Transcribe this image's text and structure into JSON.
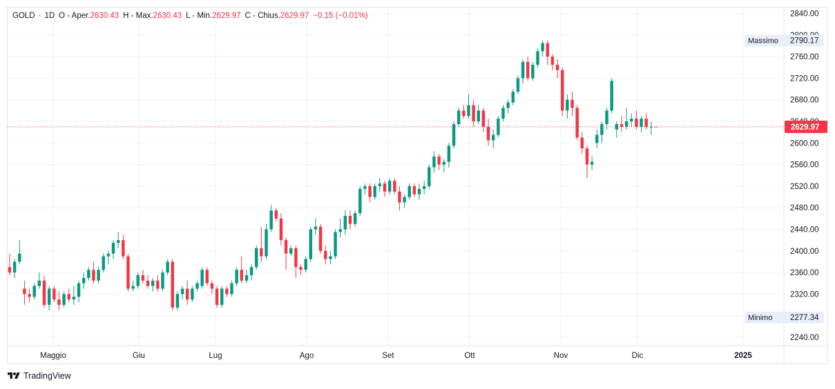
{
  "legend": {
    "symbol": "GOLD",
    "interval": "1D",
    "open_label": "O - Aper.",
    "open": "2630.43",
    "high_label": "H - Max.",
    "high": "2630.43",
    "low_label": "L - Min.",
    "low": "2629.97",
    "close_label": "C - Chius.",
    "close": "2629.97",
    "change": "−0.15 (−0.01%)"
  },
  "brand": {
    "name": "TradingView"
  },
  "colors": {
    "up": "#089981",
    "down": "#f23645",
    "grid": "#f0f3fa",
    "axis_text": "#131722"
  },
  "chart_data": {
    "type": "candlestick",
    "y_axis": {
      "range": [
        2220,
        2850
      ],
      "ticks": [
        "2240.00",
        "2280.00",
        "2320.00",
        "2360.00",
        "2400.00",
        "2440.00",
        "2480.00",
        "2520.00",
        "2560.00",
        "2600.00",
        "2640.00",
        "2680.00",
        "2720.00",
        "2760.00",
        "2800.00",
        "2840.00"
      ]
    },
    "x_axis": {
      "labels": [
        "Maggio",
        "Giu",
        "Lug",
        "Ago",
        "Set",
        "Ott",
        "Nov",
        "Dic",
        "2025"
      ]
    },
    "last_price": "2629.97",
    "max_label": "Massimo",
    "max_value": "2790.17",
    "min_label": "Minimo",
    "min_value": "2277.34",
    "candles": [
      [
        2370,
        2395,
        2355,
        2360
      ],
      [
        2360,
        2385,
        2350,
        2380
      ],
      [
        2380,
        2420,
        2375,
        2395
      ],
      [
        2330,
        2345,
        2300,
        2320
      ],
      [
        2320,
        2330,
        2305,
        2315
      ],
      [
        2315,
        2340,
        2310,
        2335
      ],
      [
        2335,
        2360,
        2330,
        2345
      ],
      [
        2345,
        2355,
        2295,
        2300
      ],
      [
        2300,
        2335,
        2290,
        2330
      ],
      [
        2330,
        2335,
        2305,
        2310
      ],
      [
        2310,
        2325,
        2290,
        2300
      ],
      [
        2300,
        2325,
        2295,
        2320
      ],
      [
        2320,
        2330,
        2305,
        2310
      ],
      [
        2310,
        2335,
        2300,
        2315
      ],
      [
        2315,
        2345,
        2305,
        2340
      ],
      [
        2340,
        2360,
        2330,
        2350
      ],
      [
        2350,
        2370,
        2345,
        2365
      ],
      [
        2365,
        2380,
        2340,
        2345
      ],
      [
        2345,
        2370,
        2340,
        2365
      ],
      [
        2365,
        2395,
        2360,
        2390
      ],
      [
        2390,
        2400,
        2375,
        2395
      ],
      [
        2395,
        2420,
        2385,
        2415
      ],
      [
        2415,
        2435,
        2405,
        2420
      ],
      [
        2420,
        2430,
        2385,
        2390
      ],
      [
        2390,
        2395,
        2325,
        2330
      ],
      [
        2330,
        2345,
        2325,
        2335
      ],
      [
        2335,
        2360,
        2330,
        2355
      ],
      [
        2355,
        2365,
        2340,
        2345
      ],
      [
        2345,
        2355,
        2330,
        2335
      ],
      [
        2335,
        2350,
        2325,
        2345
      ],
      [
        2345,
        2355,
        2325,
        2330
      ],
      [
        2330,
        2365,
        2325,
        2360
      ],
      [
        2360,
        2385,
        2355,
        2380
      ],
      [
        2380,
        2385,
        2290,
        2295
      ],
      [
        2295,
        2325,
        2290,
        2320
      ],
      [
        2320,
        2335,
        2310,
        2330
      ],
      [
        2330,
        2345,
        2300,
        2310
      ],
      [
        2310,
        2335,
        2305,
        2330
      ],
      [
        2330,
        2345,
        2325,
        2340
      ],
      [
        2335,
        2370,
        2330,
        2365
      ],
      [
        2365,
        2370,
        2335,
        2340
      ],
      [
        2340,
        2345,
        2320,
        2330
      ],
      [
        2330,
        2335,
        2295,
        2300
      ],
      [
        2300,
        2335,
        2295,
        2330
      ],
      [
        2330,
        2335,
        2315,
        2320
      ],
      [
        2320,
        2345,
        2315,
        2340
      ],
      [
        2340,
        2370,
        2335,
        2365
      ],
      [
        2365,
        2390,
        2340,
        2345
      ],
      [
        2345,
        2365,
        2340,
        2355
      ],
      [
        2355,
        2375,
        2345,
        2370
      ],
      [
        2370,
        2410,
        2365,
        2405
      ],
      [
        2405,
        2445,
        2380,
        2390
      ],
      [
        2390,
        2450,
        2385,
        2440
      ],
      [
        2440,
        2485,
        2435,
        2475
      ],
      [
        2475,
        2480,
        2455,
        2460
      ],
      [
        2460,
        2470,
        2410,
        2420
      ],
      [
        2420,
        2425,
        2365,
        2395
      ],
      [
        2395,
        2410,
        2390,
        2405
      ],
      [
        2405,
        2410,
        2350,
        2370
      ],
      [
        2370,
        2375,
        2355,
        2365
      ],
      [
        2365,
        2390,
        2360,
        2385
      ],
      [
        2385,
        2445,
        2380,
        2440
      ],
      [
        2440,
        2460,
        2430,
        2445
      ],
      [
        2445,
        2450,
        2395,
        2400
      ],
      [
        2400,
        2410,
        2375,
        2385
      ],
      [
        2385,
        2400,
        2375,
        2390
      ],
      [
        2390,
        2440,
        2385,
        2435
      ],
      [
        2435,
        2460,
        2425,
        2440
      ],
      [
        2440,
        2475,
        2430,
        2465
      ],
      [
        2465,
        2475,
        2440,
        2450
      ],
      [
        2450,
        2475,
        2445,
        2470
      ],
      [
        2470,
        2520,
        2465,
        2515
      ],
      [
        2515,
        2525,
        2505,
        2520
      ],
      [
        2520,
        2525,
        2490,
        2500
      ],
      [
        2500,
        2525,
        2495,
        2520
      ],
      [
        2520,
        2535,
        2510,
        2525
      ],
      [
        2525,
        2530,
        2500,
        2510
      ],
      [
        2510,
        2535,
        2505,
        2530
      ],
      [
        2530,
        2535,
        2505,
        2510
      ],
      [
        2510,
        2520,
        2475,
        2490
      ],
      [
        2490,
        2505,
        2480,
        2500
      ],
      [
        2500,
        2525,
        2495,
        2520
      ],
      [
        2520,
        2525,
        2500,
        2505
      ],
      [
        2505,
        2525,
        2495,
        2515
      ],
      [
        2515,
        2530,
        2505,
        2520
      ],
      [
        2520,
        2560,
        2515,
        2555
      ],
      [
        2555,
        2585,
        2545,
        2575
      ],
      [
        2575,
        2580,
        2550,
        2560
      ],
      [
        2560,
        2570,
        2545,
        2565
      ],
      [
        2565,
        2600,
        2555,
        2595
      ],
      [
        2595,
        2640,
        2590,
        2635
      ],
      [
        2635,
        2665,
        2630,
        2660
      ],
      [
        2660,
        2670,
        2645,
        2650
      ],
      [
        2650,
        2690,
        2645,
        2670
      ],
      [
        2670,
        2680,
        2630,
        2640
      ],
      [
        2640,
        2670,
        2635,
        2660
      ],
      [
        2660,
        2665,
        2620,
        2630
      ],
      [
        2630,
        2645,
        2595,
        2605
      ],
      [
        2605,
        2625,
        2590,
        2615
      ],
      [
        2615,
        2650,
        2610,
        2645
      ],
      [
        2645,
        2670,
        2640,
        2665
      ],
      [
        2665,
        2680,
        2655,
        2675
      ],
      [
        2675,
        2700,
        2670,
        2695
      ],
      [
        2695,
        2725,
        2690,
        2720
      ],
      [
        2720,
        2755,
        2710,
        2750
      ],
      [
        2750,
        2760,
        2715,
        2720
      ],
      [
        2720,
        2750,
        2715,
        2745
      ],
      [
        2745,
        2775,
        2740,
        2770
      ],
      [
        2770,
        2790,
        2760,
        2785
      ],
      [
        2785,
        2790,
        2745,
        2760
      ],
      [
        2760,
        2765,
        2735,
        2745
      ],
      [
        2745,
        2755,
        2720,
        2735
      ],
      [
        2735,
        2740,
        2650,
        2660
      ],
      [
        2660,
        2690,
        2645,
        2680
      ],
      [
        2680,
        2695,
        2650,
        2665
      ],
      [
        2665,
        2670,
        2605,
        2610
      ],
      [
        2610,
        2620,
        2580,
        2590
      ],
      [
        2590,
        2595,
        2535,
        2560
      ],
      [
        2560,
        2575,
        2550,
        2565
      ],
      [
        2600,
        2625,
        2590,
        2615
      ],
      [
        2615,
        2640,
        2600,
        2635
      ],
      [
        2635,
        2665,
        2625,
        2660
      ],
      [
        2660,
        2720,
        2655,
        2715
      ],
      [
        2625,
        2640,
        2610,
        2635
      ],
      [
        2635,
        2650,
        2620,
        2630
      ],
      [
        2630,
        2665,
        2625,
        2640
      ],
      [
        2640,
        2655,
        2630,
        2645
      ],
      [
        2645,
        2660,
        2625,
        2630
      ],
      [
        2630,
        2650,
        2620,
        2645
      ],
      [
        2645,
        2655,
        2625,
        2630
      ],
      [
        2630,
        2640,
        2615,
        2630
      ],
      [
        2630.43,
        2630.43,
        2629.97,
        2629.97
      ]
    ]
  }
}
